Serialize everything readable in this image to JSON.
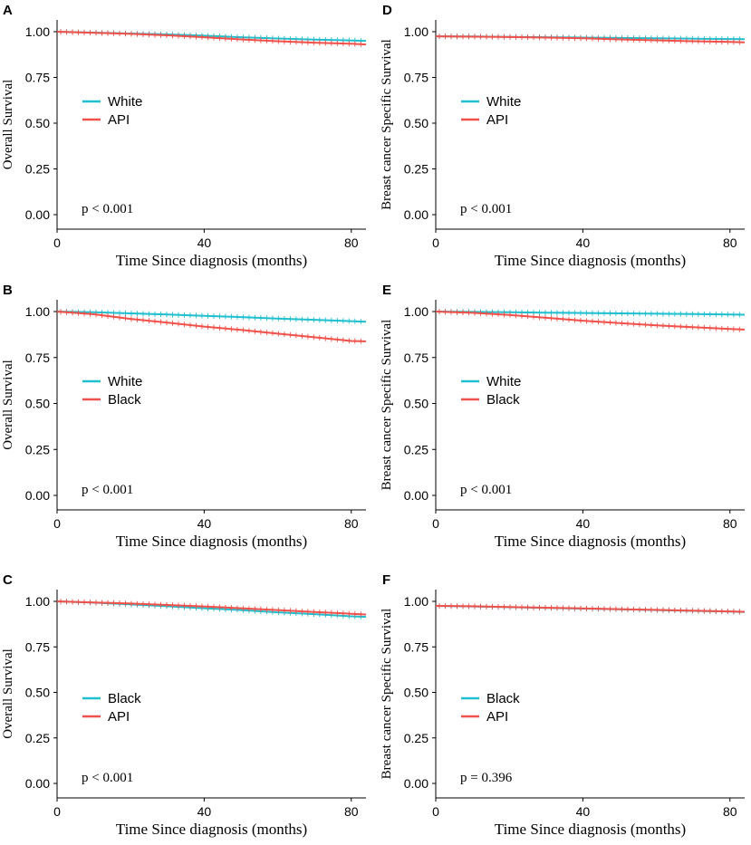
{
  "colors": {
    "teal": "#1FBFCF",
    "red": "#F0514A",
    "axis": "#000000"
  },
  "chart_data": [
    {
      "type": "line",
      "panel": "A",
      "xlabel": "Time Since diagnosis (months)",
      "ylabel": "Overall Survival",
      "xlim": [
        0,
        84
      ],
      "ylim": [
        0,
        1
      ],
      "xticks": [
        "0",
        "40",
        "80"
      ],
      "yticks": [
        "0.00",
        "0.25",
        "0.50",
        "0.75",
        "1.00"
      ],
      "annotation": "p < 0.001",
      "series": [
        {
          "name": "White",
          "color": "#1FBFCF",
          "x": [
            0,
            10,
            20,
            30,
            40,
            50,
            60,
            70,
            80,
            84
          ],
          "y": [
            1.0,
            0.995,
            0.99,
            0.985,
            0.978,
            0.97,
            0.963,
            0.957,
            0.952,
            0.95
          ]
        },
        {
          "name": "API",
          "color": "#F0514A",
          "x": [
            0,
            10,
            20,
            30,
            40,
            50,
            60,
            70,
            80,
            84
          ],
          "y": [
            1.0,
            0.994,
            0.988,
            0.98,
            0.97,
            0.958,
            0.948,
            0.94,
            0.934,
            0.93
          ]
        }
      ]
    },
    {
      "type": "line",
      "panel": "D",
      "xlabel": "Time Since diagnosis (months)",
      "ylabel": "Breast cancer Specific Survival",
      "xlim": [
        0,
        84
      ],
      "ylim": [
        0,
        1
      ],
      "xticks": [
        "0",
        "40",
        "80"
      ],
      "yticks": [
        "0.00",
        "0.25",
        "0.50",
        "0.75",
        "1.00"
      ],
      "annotation": "p < 0.001",
      "series": [
        {
          "name": "White",
          "color": "#1FBFCF",
          "x": [
            0,
            10,
            20,
            30,
            40,
            50,
            60,
            70,
            80,
            84
          ],
          "y": [
            0.975,
            0.974,
            0.972,
            0.97,
            0.968,
            0.966,
            0.964,
            0.962,
            0.96,
            0.959
          ]
        },
        {
          "name": "API",
          "color": "#F0514A",
          "x": [
            0,
            10,
            20,
            30,
            40,
            50,
            60,
            70,
            80,
            84
          ],
          "y": [
            0.975,
            0.973,
            0.971,
            0.968,
            0.964,
            0.958,
            0.953,
            0.948,
            0.944,
            0.942
          ]
        }
      ]
    },
    {
      "type": "line",
      "panel": "B",
      "xlabel": "Time Since diagnosis (months)",
      "ylabel": "Overall Survival",
      "xlim": [
        0,
        84
      ],
      "ylim": [
        0,
        1
      ],
      "xticks": [
        "0",
        "40",
        "80"
      ],
      "yticks": [
        "0.00",
        "0.25",
        "0.50",
        "0.75",
        "1.00"
      ],
      "annotation": "p < 0.001",
      "series": [
        {
          "name": "White",
          "color": "#1FBFCF",
          "x": [
            0,
            10,
            20,
            30,
            40,
            50,
            60,
            70,
            80,
            84
          ],
          "y": [
            1.0,
            0.996,
            0.99,
            0.984,
            0.977,
            0.97,
            0.962,
            0.955,
            0.948,
            0.945
          ]
        },
        {
          "name": "Black",
          "color": "#F0514A",
          "x": [
            0,
            10,
            20,
            30,
            40,
            50,
            60,
            70,
            80,
            84
          ],
          "y": [
            1.0,
            0.985,
            0.96,
            0.94,
            0.918,
            0.9,
            0.88,
            0.86,
            0.84,
            0.838
          ]
        }
      ]
    },
    {
      "type": "line",
      "panel": "E",
      "xlabel": "Time Since diagnosis (months)",
      "ylabel": "Breast cancer Specific Survival",
      "xlim": [
        0,
        84
      ],
      "ylim": [
        0,
        1
      ],
      "xticks": [
        "0",
        "40",
        "80"
      ],
      "yticks": [
        "0.00",
        "0.25",
        "0.50",
        "0.75",
        "1.00"
      ],
      "annotation": "p < 0.001",
      "series": [
        {
          "name": "White",
          "color": "#1FBFCF",
          "x": [
            0,
            10,
            20,
            30,
            40,
            50,
            60,
            70,
            80,
            84
          ],
          "y": [
            1.0,
            0.998,
            0.996,
            0.994,
            0.992,
            0.99,
            0.988,
            0.986,
            0.984,
            0.983
          ]
        },
        {
          "name": "Black",
          "color": "#F0514A",
          "x": [
            0,
            10,
            20,
            30,
            40,
            50,
            60,
            70,
            80,
            84
          ],
          "y": [
            1.0,
            0.993,
            0.982,
            0.966,
            0.95,
            0.937,
            0.925,
            0.915,
            0.905,
            0.902
          ]
        }
      ]
    },
    {
      "type": "line",
      "panel": "C",
      "xlabel": "Time Since diagnosis (months)",
      "ylabel": "Overall Survival",
      "xlim": [
        0,
        84
      ],
      "ylim": [
        0,
        1
      ],
      "xticks": [
        "0",
        "40",
        "80"
      ],
      "yticks": [
        "0.00",
        "0.25",
        "0.50",
        "0.75",
        "1.00"
      ],
      "annotation": "p < 0.001",
      "series": [
        {
          "name": "Black",
          "color": "#1FBFCF",
          "x": [
            0,
            10,
            20,
            30,
            40,
            50,
            60,
            70,
            80,
            84
          ],
          "y": [
            1.0,
            0.993,
            0.983,
            0.973,
            0.962,
            0.952,
            0.94,
            0.93,
            0.918,
            0.915
          ]
        },
        {
          "name": "API",
          "color": "#F0514A",
          "x": [
            0,
            10,
            20,
            30,
            40,
            50,
            60,
            70,
            80,
            84
          ],
          "y": [
            1.0,
            0.994,
            0.988,
            0.98,
            0.972,
            0.962,
            0.952,
            0.942,
            0.932,
            0.928
          ]
        }
      ]
    },
    {
      "type": "line",
      "panel": "F",
      "xlabel": "Time Since diagnosis (months)",
      "ylabel": "Breast cancer Specific Survival",
      "xlim": [
        0,
        84
      ],
      "ylim": [
        0,
        1
      ],
      "xticks": [
        "0",
        "40",
        "80"
      ],
      "yticks": [
        "0.00",
        "0.25",
        "0.50",
        "0.75",
        "1.00"
      ],
      "annotation": "p = 0.396",
      "series": [
        {
          "name": "Black",
          "color": "#1FBFCF",
          "x": [
            0,
            10,
            20,
            30,
            40,
            50,
            60,
            70,
            80,
            84
          ],
          "y": [
            0.975,
            0.972,
            0.968,
            0.964,
            0.96,
            0.956,
            0.952,
            0.948,
            0.944,
            0.942
          ]
        },
        {
          "name": "API",
          "color": "#F0514A",
          "x": [
            0,
            10,
            20,
            30,
            40,
            50,
            60,
            70,
            80,
            84
          ],
          "y": [
            0.975,
            0.973,
            0.969,
            0.965,
            0.961,
            0.957,
            0.953,
            0.949,
            0.945,
            0.943
          ]
        }
      ]
    }
  ]
}
